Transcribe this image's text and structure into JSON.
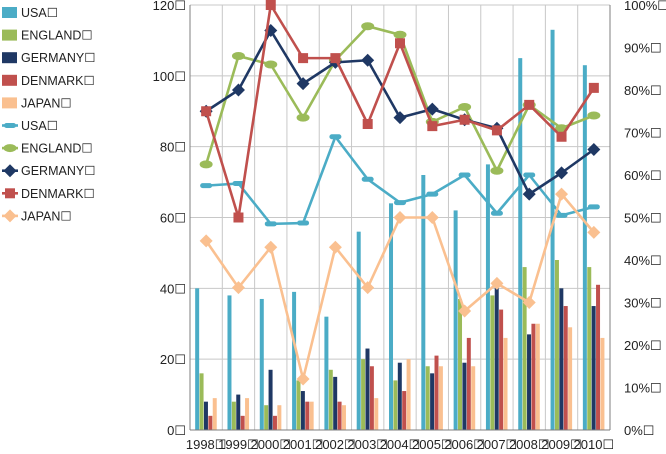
{
  "chart_data": {
    "type": "bar",
    "categories": [
      "1998☐",
      "1999☐",
      "2000☐",
      "2001☐",
      "2002☐",
      "2003☐",
      "2004☐",
      "2005☐",
      "2006☐",
      "2007☐",
      "2008☐",
      "2009☐",
      "2010☐"
    ],
    "bar_series": [
      {
        "name": "USA☐",
        "color": "#4BACC6",
        "values": [
          40,
          38,
          37,
          39,
          32,
          56,
          64,
          72,
          62,
          75,
          105,
          113,
          103
        ]
      },
      {
        "name": "ENGLAND☐",
        "color": "#9BBB59",
        "values": [
          16,
          8,
          7,
          14,
          17,
          20,
          14,
          18,
          37,
          38,
          46,
          48,
          46
        ]
      },
      {
        "name": "GERMANY☐",
        "color": "#1F3864",
        "values": [
          8,
          10,
          17,
          11,
          15,
          23,
          19,
          16,
          19,
          41,
          27,
          40,
          35
        ]
      },
      {
        "name": "DENMARK☐",
        "color": "#C0504D",
        "values": [
          4,
          4,
          4,
          8,
          8,
          18,
          11,
          21,
          26,
          34,
          30,
          35,
          41
        ]
      },
      {
        "name": "JAPAN☐",
        "color": "#FAC090",
        "values": [
          9,
          9,
          7,
          8,
          7,
          9,
          20,
          18,
          18,
          26,
          30,
          29,
          26
        ]
      }
    ],
    "line_series": [
      {
        "name": "USA☐",
        "color": "#4BACC6",
        "marker": "dash",
        "values": [
          57.5,
          58,
          48.5,
          48.7,
          69,
          59,
          53.5,
          55.5,
          60,
          51,
          60,
          50.5,
          52.5
        ]
      },
      {
        "name": "ENGLAND☐",
        "color": "#9BBB59",
        "marker": "circle",
        "values": [
          62.5,
          88,
          86,
          73.5,
          87,
          95,
          93,
          72.5,
          76,
          61,
          76.5,
          71,
          74
        ]
      },
      {
        "name": "GERMANY☐",
        "color": "#1F3864",
        "marker": "diamond",
        "values": [
          75,
          80,
          94,
          81.5,
          86.5,
          87,
          73.5,
          75.5,
          73,
          71,
          55.5,
          60.5,
          66
        ]
      },
      {
        "name": "DENMARK☐",
        "color": "#C0504D",
        "marker": "square",
        "values": [
          75,
          50,
          100,
          87.5,
          87.5,
          72,
          91,
          71.5,
          73,
          70.5,
          76.5,
          69,
          80.5
        ]
      },
      {
        "name": "JAPAN☐",
        "color": "#FAC090",
        "marker": "diamond",
        "values": [
          44.5,
          33.5,
          43,
          12,
          43,
          33.5,
          50,
          50,
          28,
          34.5,
          30,
          55.5,
          46.5
        ]
      }
    ],
    "y_left": {
      "ylim": [
        0,
        120
      ],
      "ticks": [
        "0☐",
        "20☐",
        "40☐",
        "60☐",
        "80☐",
        "100☐",
        "120☐"
      ]
    },
    "y_right": {
      "ylim": [
        0,
        100
      ],
      "ticks": [
        "0%☐",
        "10%☐",
        "20%☐",
        "30%☐",
        "40%☐",
        "50%☐",
        "60%☐",
        "70%☐",
        "80%☐",
        "90%☐",
        "100%☐"
      ]
    },
    "grid": true,
    "legend_position": "left"
  }
}
